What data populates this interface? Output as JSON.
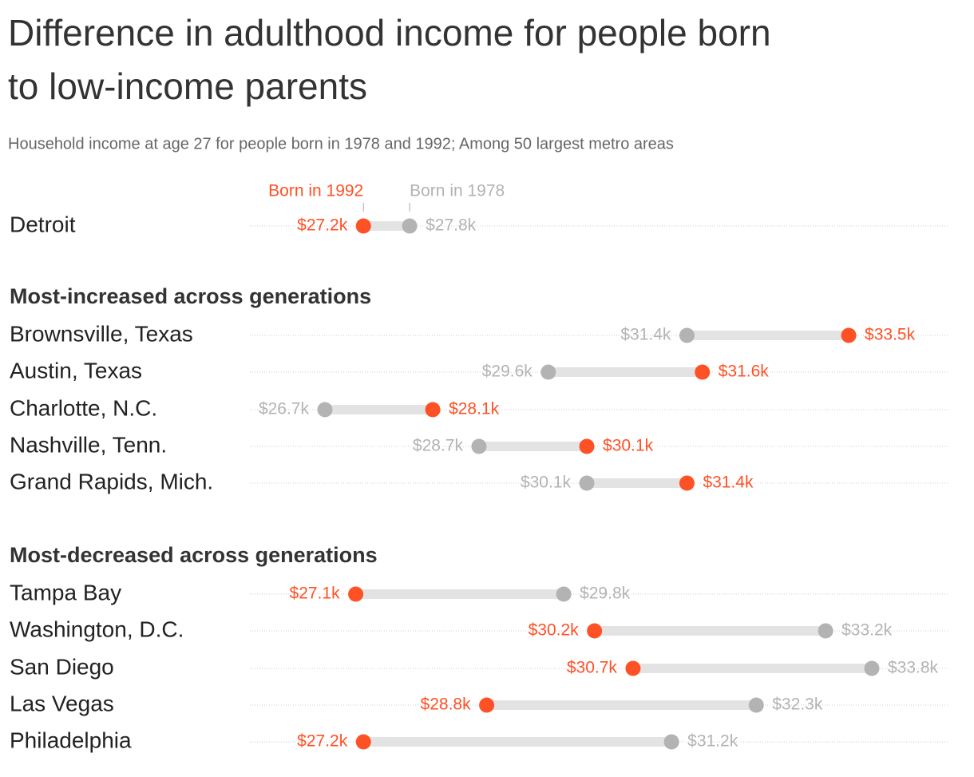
{
  "title": "Difference in adulthood income for people born to low-income parents",
  "subtitle": "Household income at age 27 for people born in 1978 and 1992; Among 50 largest metro areas",
  "chart_data": [
    {
      "type": "dumbbell",
      "categories": [
        "Detroit"
      ],
      "series": [
        {
          "name": "Born in 1992",
          "color": "#ff5126",
          "values": [
            27.2
          ],
          "value_labels": [
            "$27.2k"
          ]
        },
        {
          "name": "Born in 1978",
          "color": "#b3b3b3",
          "values": [
            27.8
          ],
          "value_labels": [
            "$27.8k"
          ]
        }
      ]
    },
    {
      "type": "dumbbell",
      "title": "Most-increased across generations",
      "categories": [
        "Brownsville, Texas",
        "Austin, Texas",
        "Charlotte, N.C.",
        "Nashville, Tenn.",
        "Grand Rapids, Mich."
      ],
      "series": [
        {
          "color": "#ff5126",
          "values": [
            33.5,
            31.6,
            28.1,
            30.1,
            31.4
          ],
          "value_labels": [
            "$33.5k",
            "$31.6k",
            "$28.1k",
            "$30.1k",
            "$31.4k"
          ]
        },
        {
          "color": "#b3b3b3",
          "values": [
            31.4,
            29.6,
            26.7,
            28.7,
            30.1
          ],
          "value_labels": [
            "$31.4k",
            "$29.6k",
            "$26.7k",
            "$28.7k",
            "$30.1k"
          ]
        }
      ]
    },
    {
      "type": "dumbbell",
      "title": "Most-decreased across generations",
      "categories": [
        "Tampa Bay",
        "Washington, D.C.",
        "San Diego",
        "Las Vegas",
        "Philadelphia"
      ],
      "series": [
        {
          "color": "#ff5126",
          "values": [
            27.1,
            30.2,
            30.7,
            28.8,
            27.2
          ],
          "value_labels": [
            "$27.1k",
            "$30.2k",
            "$30.7k",
            "$28.8k",
            "$27.2k"
          ]
        },
        {
          "color": "#b3b3b3",
          "values": [
            29.8,
            33.2,
            33.8,
            32.3,
            31.2
          ],
          "value_labels": [
            "$29.8k",
            "$33.2k",
            "$33.8k",
            "$32.3k",
            "$31.2k"
          ]
        }
      ]
    }
  ]
}
